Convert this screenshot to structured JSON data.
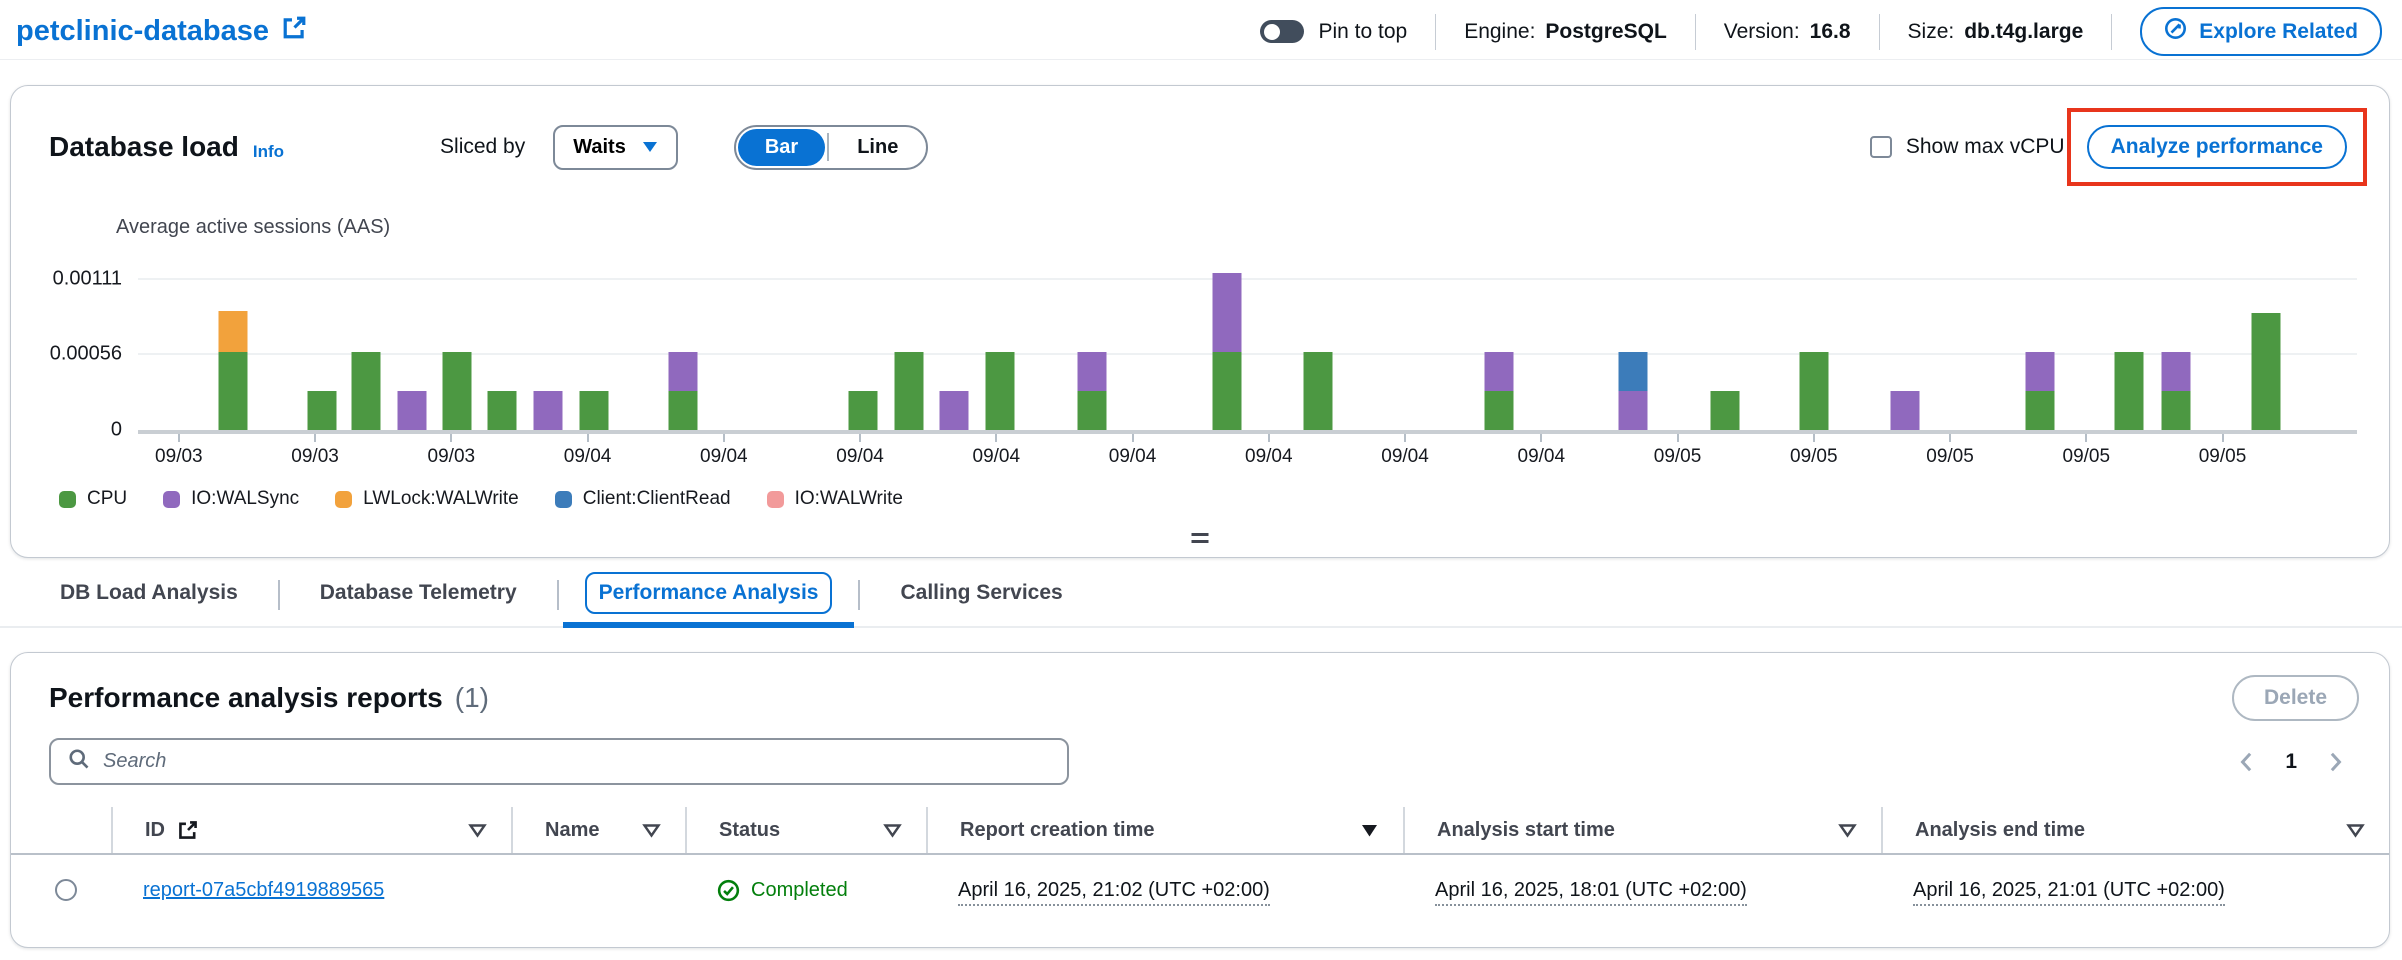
{
  "header": {
    "title": "petclinic-database",
    "pin_label": "Pin to top",
    "engine_label": "Engine:",
    "engine_value": "PostgreSQL",
    "version_label": "Version:",
    "version_value": "16.8",
    "size_label": "Size:",
    "size_value": "db.t4g.large",
    "explore_button": "Explore Related"
  },
  "load_panel": {
    "title": "Database load",
    "info_link": "Info",
    "sliced_by_label": "Sliced by",
    "slice_select_value": "Waits",
    "view_toggle": {
      "bar": "Bar",
      "line": "Line",
      "selected": "Bar"
    },
    "show_max_vcpu_label": "Show max vCPU",
    "analyze_button": "Analyze performance"
  },
  "chart_data": {
    "type": "bar",
    "stacked": true,
    "title": "Average active sessions (AAS)",
    "ylabel": "Average active sessions (AAS)",
    "ylim": [
      0,
      0.00118
    ],
    "grid": true,
    "legend_position": "bottom",
    "yticks": [
      {
        "value": 0,
        "label": "0"
      },
      {
        "value": 0.00056,
        "label": "0.00056"
      },
      {
        "value": 0.00111,
        "label": "0.00111"
      }
    ],
    "x_axis_ticks": [
      "09/03",
      "09/03",
      "09/03",
      "09/04",
      "09/04",
      "09/04",
      "09/04",
      "09/04",
      "09/04",
      "09/04",
      "09/04",
      "09/05",
      "09/05",
      "09/05",
      "09/05",
      "09/05"
    ],
    "tick_first_frac": 0.0184,
    "tick_step_frac": 0.0614,
    "legend": [
      {
        "label": "CPU",
        "color": "#4c9842"
      },
      {
        "label": "IO:WALSync",
        "color": "#9069be"
      },
      {
        "label": "LWLock:WALWrite",
        "color": "#f2a23c"
      },
      {
        "label": "Client:ClientRead",
        "color": "#3c7cba"
      },
      {
        "label": "IO:WALWrite",
        "color": "#f29a9a"
      }
    ],
    "bars": [
      {
        "x": 0.0426,
        "stack": [
          [
            "CPU",
            0.00056
          ],
          [
            "LWLock:WALWrite",
            0.00029
          ]
        ]
      },
      {
        "x": 0.0829,
        "stack": [
          [
            "CPU",
            0.00028
          ]
        ]
      },
      {
        "x": 0.1027,
        "stack": [
          [
            "CPU",
            0.00056
          ]
        ]
      },
      {
        "x": 0.1233,
        "stack": [
          [
            "IO:WALSync",
            0.00028
          ]
        ]
      },
      {
        "x": 0.1439,
        "stack": [
          [
            "CPU",
            0.00056
          ]
        ]
      },
      {
        "x": 0.1641,
        "stack": [
          [
            "CPU",
            0.00028
          ]
        ]
      },
      {
        "x": 0.1847,
        "stack": [
          [
            "IO:WALSync",
            0.00028
          ]
        ]
      },
      {
        "x": 0.2053,
        "stack": [
          [
            "CPU",
            0.00028
          ]
        ]
      },
      {
        "x": 0.2456,
        "stack": [
          [
            "CPU",
            0.00028
          ],
          [
            "IO:WALSync",
            0.00028
          ]
        ]
      },
      {
        "x": 0.3268,
        "stack": [
          [
            "CPU",
            0.00028
          ]
        ]
      },
      {
        "x": 0.3474,
        "stack": [
          [
            "CPU",
            0.00056
          ]
        ]
      },
      {
        "x": 0.3676,
        "stack": [
          [
            "IO:WALSync",
            0.00028
          ]
        ]
      },
      {
        "x": 0.3886,
        "stack": [
          [
            "CPU",
            0.00056
          ]
        ]
      },
      {
        "x": 0.4299,
        "stack": [
          [
            "CPU",
            0.00028
          ],
          [
            "IO:WALSync",
            0.00028
          ]
        ]
      },
      {
        "x": 0.4908,
        "stack": [
          [
            "CPU",
            0.00056
          ],
          [
            "IO:WALSync",
            0.00056
          ]
        ]
      },
      {
        "x": 0.5316,
        "stack": [
          [
            "CPU",
            0.00056
          ]
        ]
      },
      {
        "x": 0.6132,
        "stack": [
          [
            "CPU",
            0.00028
          ],
          [
            "IO:WALSync",
            0.00028
          ]
        ]
      },
      {
        "x": 0.6737,
        "stack": [
          [
            "IO:WALSync",
            0.00028
          ],
          [
            "Client:ClientRead",
            0.00028
          ]
        ]
      },
      {
        "x": 0.715,
        "stack": [
          [
            "CPU",
            0.00028
          ]
        ]
      },
      {
        "x": 0.7553,
        "stack": [
          [
            "CPU",
            0.00056
          ]
        ]
      },
      {
        "x": 0.7961,
        "stack": [
          [
            "IO:WALSync",
            0.00028
          ]
        ]
      },
      {
        "x": 0.8571,
        "stack": [
          [
            "CPU",
            0.00028
          ],
          [
            "IO:WALSync",
            0.00028
          ]
        ]
      },
      {
        "x": 0.8974,
        "stack": [
          [
            "CPU",
            0.00056
          ]
        ]
      },
      {
        "x": 0.9185,
        "stack": [
          [
            "CPU",
            0.00028
          ],
          [
            "IO:WALSync",
            0.00028
          ]
        ]
      },
      {
        "x": 0.9588,
        "stack": [
          [
            "CPU",
            0.00084
          ]
        ]
      }
    ]
  },
  "tabs": [
    {
      "label": "DB Load Analysis",
      "active": false
    },
    {
      "label": "Database Telemetry",
      "active": false
    },
    {
      "label": "Performance Analysis",
      "active": true
    },
    {
      "label": "Calling Services",
      "active": false
    }
  ],
  "reports_panel": {
    "title": "Performance analysis reports",
    "count": "(1)",
    "delete_button": "Delete",
    "search_placeholder": "Search",
    "pagination": {
      "page": "1"
    },
    "table": {
      "columns": [
        {
          "label": "",
          "type": "radio"
        },
        {
          "label": "ID",
          "icon": "external-link",
          "filter": "outline"
        },
        {
          "label": "Name",
          "filter": "outline"
        },
        {
          "label": "Status",
          "filter": "outline"
        },
        {
          "label": "Report creation time",
          "filter": "filled"
        },
        {
          "label": "Analysis start time",
          "filter": "outline"
        },
        {
          "label": "Analysis end time",
          "filter": "outline"
        }
      ],
      "rows": [
        {
          "id": "report-07a5cbf4919889565",
          "name": "",
          "status": "Completed",
          "report_creation_time": "April 16, 2025, 21:02 (UTC +02:00)",
          "analysis_start_time": "April 16, 2025, 18:01 (UTC +02:00)",
          "analysis_end_time": "April 16, 2025, 21:01 (UTC +02:00)"
        }
      ]
    }
  },
  "colors": {
    "accent_blue": "#0972d3",
    "annotation_red": "#e8351c",
    "status_green": "#037f0c",
    "text_dark": "#0f141a",
    "text_secondary": "#424650",
    "disabled_gray": "#9ba7b6"
  }
}
